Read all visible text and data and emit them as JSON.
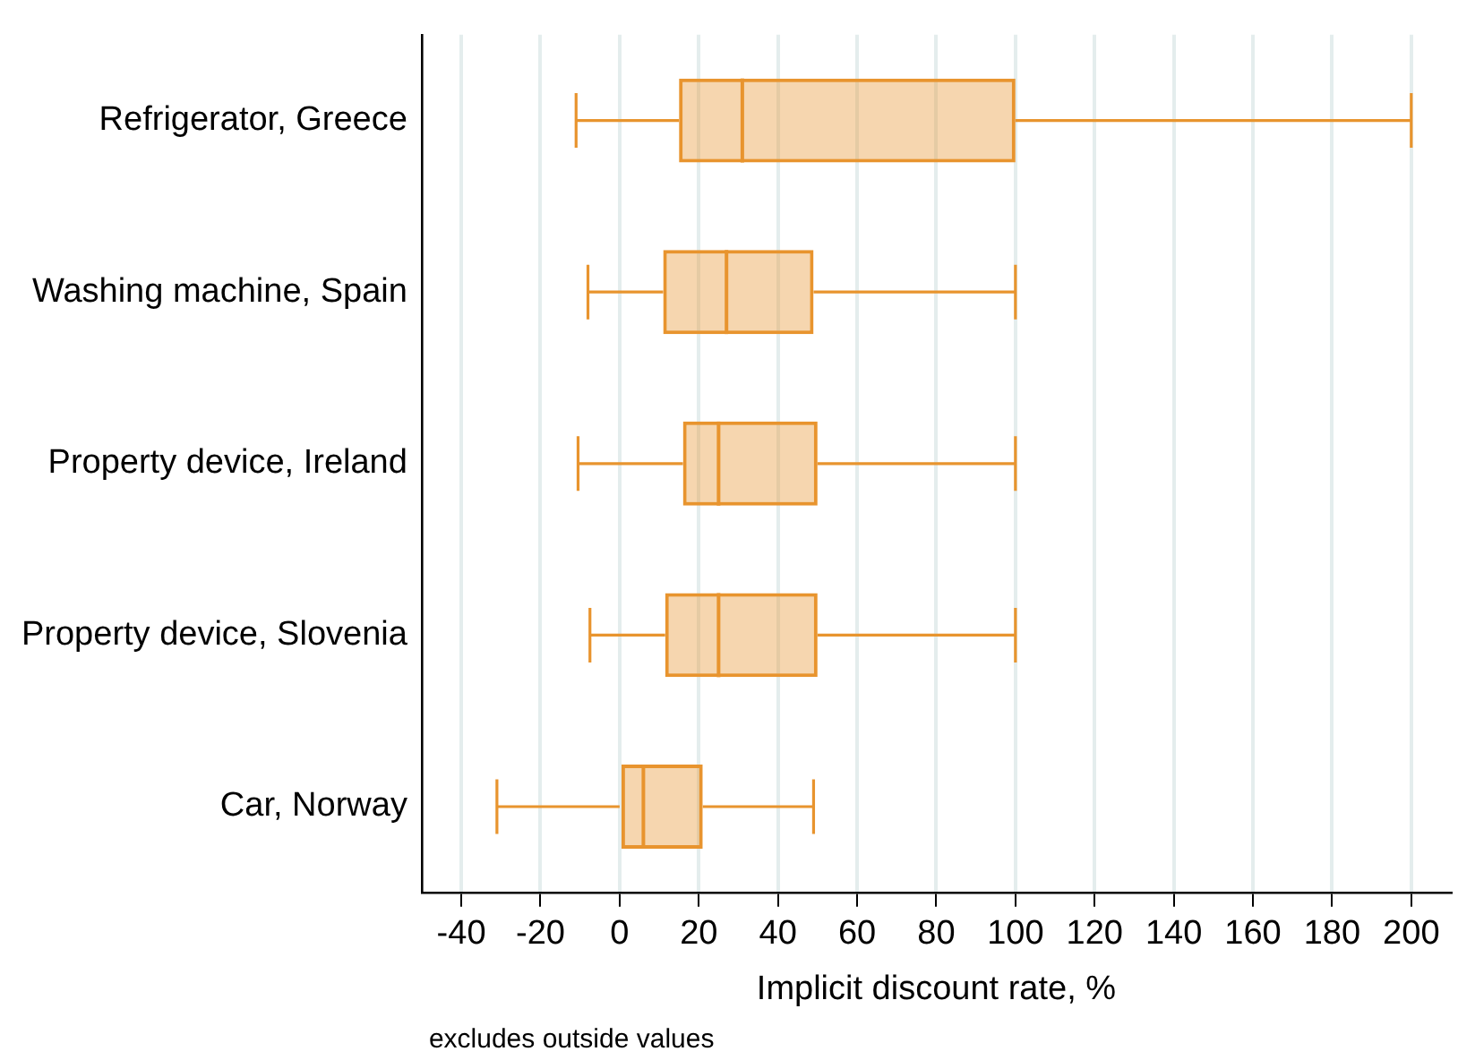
{
  "chart_data": {
    "type": "box",
    "orientation": "horizontal",
    "xlabel": "Implicit discount rate, %",
    "annotations": [
      "excludes outside values"
    ],
    "categories": [
      "Refrigerator, Greece",
      "Washing machine, Spain",
      "Property device, Ireland",
      "Property device, Slovenia",
      "Car, Norway"
    ],
    "color": "#e8942e",
    "boxes": [
      {
        "low": -11,
        "q1": 15,
        "median": 31,
        "q3": 100,
        "high": 200
      },
      {
        "low": -8,
        "q1": 11,
        "median": 27,
        "q3": 49,
        "high": 100
      },
      {
        "low": -10.5,
        "q1": 16,
        "median": 25,
        "q3": 50,
        "high": 100
      },
      {
        "low": -7.5,
        "q1": 11.5,
        "median": 25,
        "q3": 50,
        "high": 100
      },
      {
        "low": -31,
        "q1": 0,
        "median": 6,
        "q3": 21,
        "high": 49
      }
    ],
    "xlim": [
      -50,
      210
    ],
    "xticks": [
      -40,
      -20,
      0,
      20,
      40,
      60,
      80,
      100,
      120,
      140,
      160,
      180,
      200
    ],
    "grid": "x",
    "legend": false
  }
}
